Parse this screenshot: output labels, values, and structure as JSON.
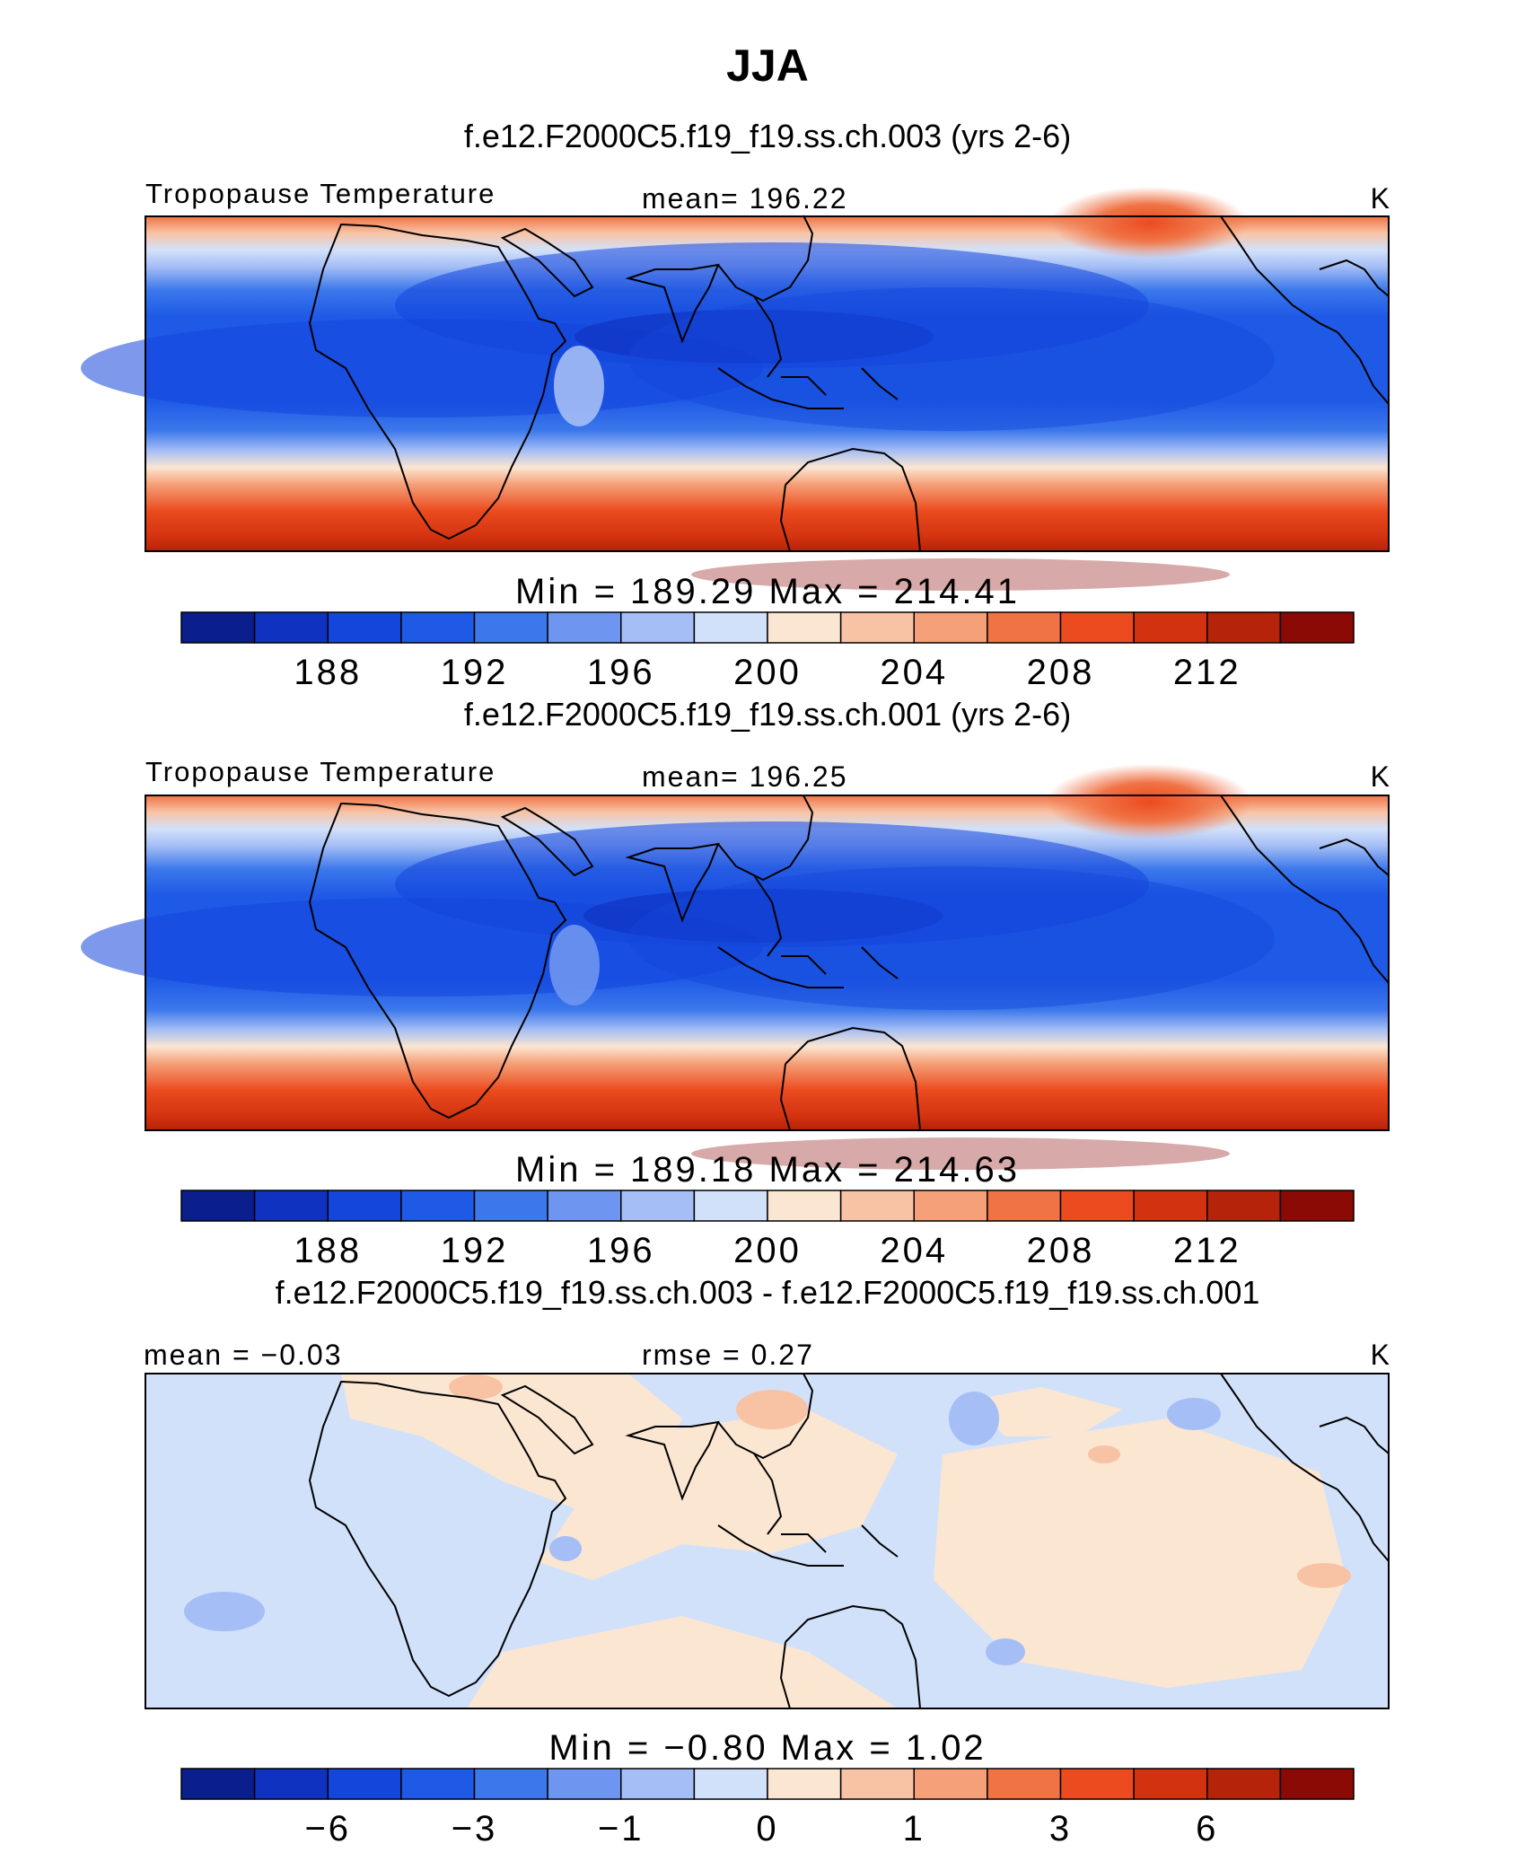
{
  "figure": {
    "title": "JJA",
    "units": "K"
  },
  "chart_data": [
    {
      "type": "heatmap",
      "title": "f.e12.F2000C5.f19_f19.ss.ch.003 (yrs 2-6)",
      "variable": "Tropopause Temperature",
      "units": "K",
      "stat_left": "",
      "mean_label": "mean= 196.22",
      "mean": 196.22,
      "min": 189.29,
      "max": 214.41,
      "minmax_label": "Min = 189.29 Max = 214.41",
      "colorbar": {
        "levels": [
          186,
          188,
          190,
          192,
          194,
          196,
          198,
          200,
          202,
          204,
          206,
          208,
          210,
          212,
          214
        ],
        "tick_labels": [
          "188",
          "192",
          "196",
          "200",
          "204",
          "208",
          "212"
        ],
        "colors": [
          "#0a1e8c",
          "#0f32c0",
          "#1446dc",
          "#1e5ae6",
          "#3c78eb",
          "#6e96f0",
          "#a5bef5",
          "#d2e1fa",
          "#fbe6d2",
          "#f8c3a5",
          "#f5a078",
          "#f07346",
          "#eb4b1e",
          "#d2320f",
          "#b4230a",
          "#8c0a05"
        ]
      }
    },
    {
      "type": "heatmap",
      "title": "f.e12.F2000C5.f19_f19.ss.ch.001 (yrs 2-6)",
      "variable": "Tropopause Temperature",
      "units": "K",
      "mean_label": "mean= 196.25",
      "mean": 196.25,
      "min": 189.18,
      "max": 214.63,
      "minmax_label": "Min = 189.18 Max = 214.63",
      "colorbar": {
        "levels": [
          186,
          188,
          190,
          192,
          194,
          196,
          198,
          200,
          202,
          204,
          206,
          208,
          210,
          212,
          214
        ],
        "tick_labels": [
          "188",
          "192",
          "196",
          "200",
          "204",
          "208",
          "212"
        ],
        "colors": [
          "#0a1e8c",
          "#0f32c0",
          "#1446dc",
          "#1e5ae6",
          "#3c78eb",
          "#6e96f0",
          "#a5bef5",
          "#d2e1fa",
          "#fbe6d2",
          "#f8c3a5",
          "#f5a078",
          "#f07346",
          "#eb4b1e",
          "#d2320f",
          "#b4230a",
          "#8c0a05"
        ]
      }
    },
    {
      "type": "heatmap",
      "title": "f.e12.F2000C5.f19_f19.ss.ch.003 - f.e12.F2000C5.f19_f19.ss.ch.001",
      "units": "K",
      "mean_label": "mean = −0.03",
      "mean": -0.03,
      "rmse_label": "rmse = 0.27",
      "rmse": 0.27,
      "min": -0.8,
      "max": 1.02,
      "minmax_label": "Min = −0.80 Max = 1.02",
      "colorbar": {
        "tick_labels": [
          "−6",
          "−3",
          "−1",
          "0",
          "1",
          "3",
          "6"
        ],
        "colors": [
          "#0a1e8c",
          "#0f32c0",
          "#1446dc",
          "#1e5ae6",
          "#3c78eb",
          "#6e96f0",
          "#a5bef5",
          "#d2e1fa",
          "#fbe6d2",
          "#f8c3a5",
          "#f5a078",
          "#f07346",
          "#eb4b1e",
          "#d2320f",
          "#b4230a",
          "#8c0a05"
        ]
      }
    }
  ]
}
